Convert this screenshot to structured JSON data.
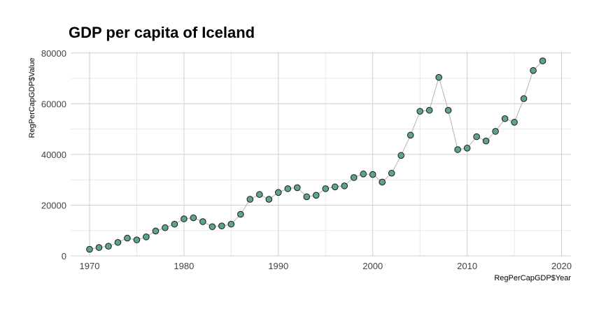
{
  "chart_data": {
    "type": "scatter",
    "title": "GDP per capita of Iceland",
    "xlabel": "RegPerCapGDP$Year",
    "ylabel": "RegPerCapGDP$Value",
    "xlim": [
      1968,
      2021
    ],
    "ylim": [
      0,
      80500
    ],
    "x_ticks": [
      1970,
      1980,
      1990,
      2000,
      2010,
      2020
    ],
    "y_ticks": [
      0,
      20000,
      40000,
      60000,
      80000
    ],
    "grid": true,
    "connecting_line": true,
    "series": [
      {
        "point_color": "#5fa38b",
        "line_color": "#b3b3b3",
        "x": [
          1970,
          1971,
          1972,
          1973,
          1974,
          1975,
          1976,
          1977,
          1978,
          1979,
          1980,
          1981,
          1982,
          1983,
          1984,
          1985,
          1986,
          1987,
          1988,
          1989,
          1990,
          1991,
          1992,
          1993,
          1994,
          1995,
          1996,
          1997,
          1998,
          1999,
          2000,
          2001,
          2002,
          2003,
          2004,
          2005,
          2006,
          2007,
          2008,
          2009,
          2010,
          2011,
          2012,
          2013,
          2014,
          2015,
          2016,
          2017,
          2018
        ],
        "y": [
          2600,
          3300,
          3800,
          5300,
          7000,
          6300,
          7500,
          9800,
          11100,
          12500,
          14600,
          15000,
          13500,
          11500,
          11800,
          12500,
          16400,
          22300,
          24200,
          22300,
          25000,
          26500,
          26900,
          23300,
          23900,
          26500,
          27200,
          27600,
          30900,
          32300,
          32100,
          29100,
          32600,
          39600,
          47600,
          57000,
          57400,
          70400,
          57400,
          41900,
          42500,
          47000,
          45300,
          49100,
          54100,
          52700,
          62000,
          73100,
          76900
        ]
      }
    ]
  }
}
